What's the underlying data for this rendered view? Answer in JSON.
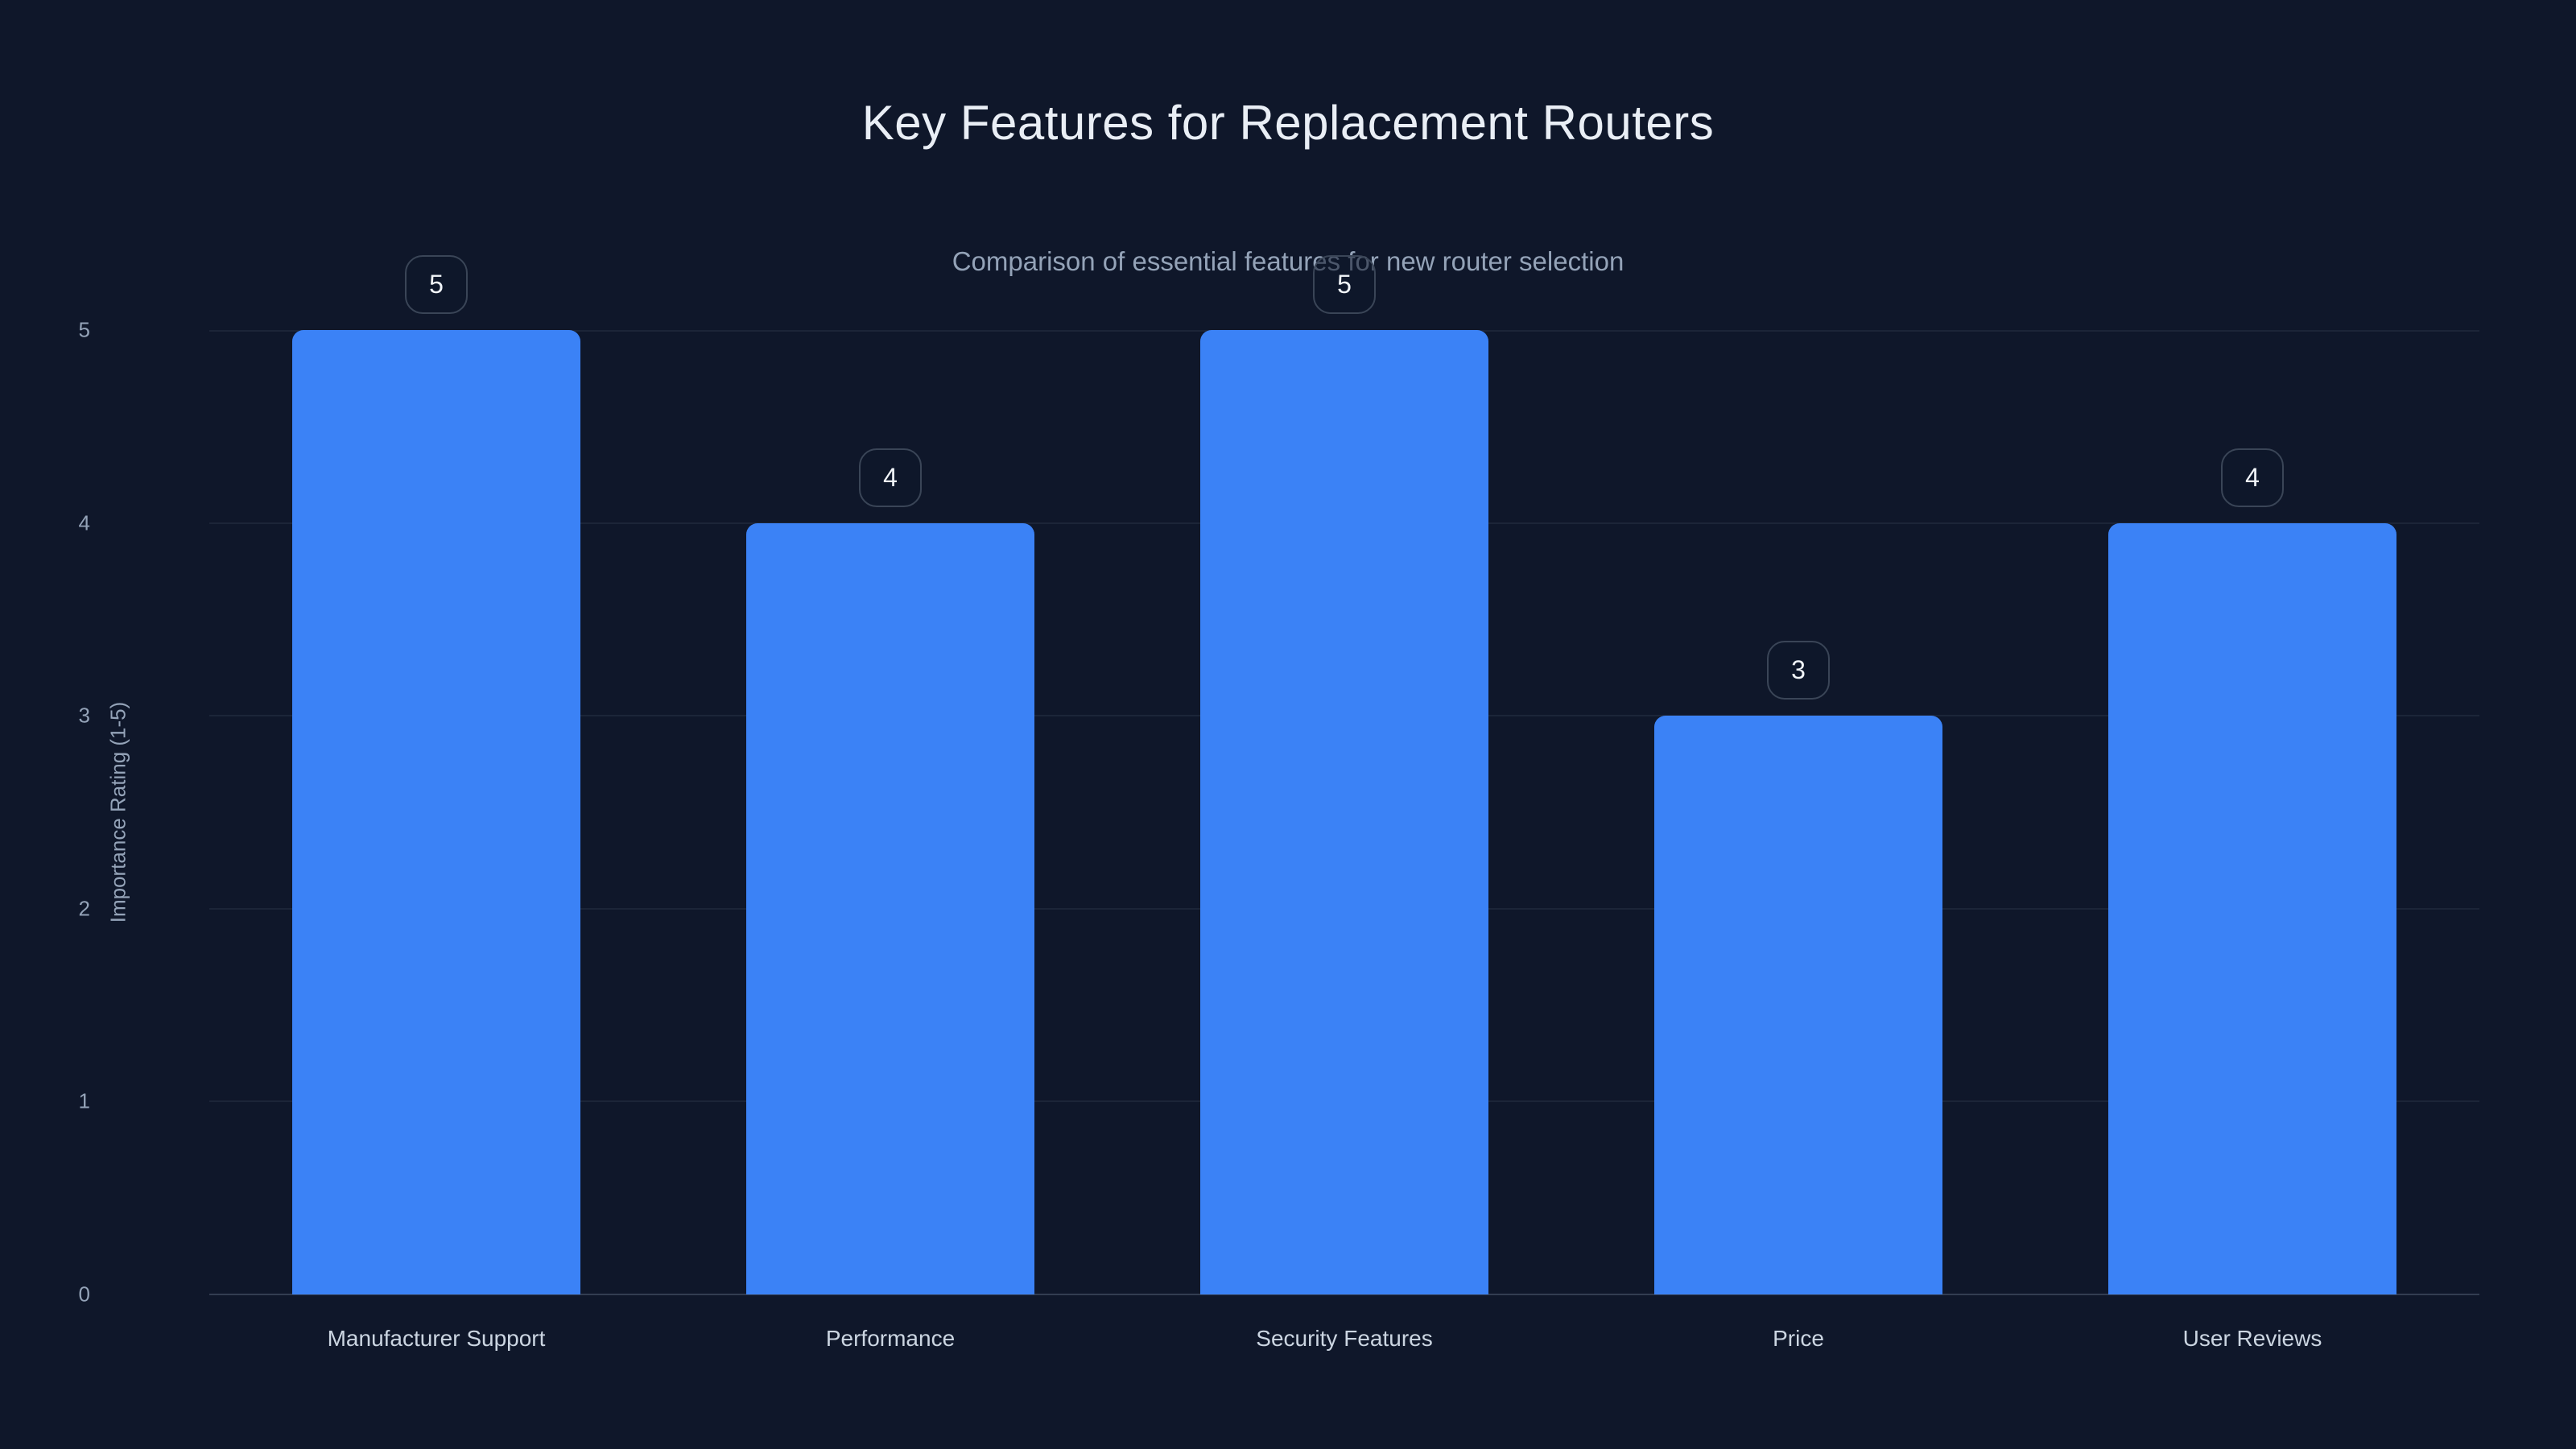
{
  "page": {
    "background_color": "#0f172a"
  },
  "chart_data": {
    "type": "bar",
    "title": "Key Features for Replacement Routers",
    "subtitle": "Comparison of essential features for new router selection",
    "ylabel": "Importance Rating (1-5)",
    "xlabel": "",
    "categories": [
      "Manufacturer Support",
      "Performance",
      "Security Features",
      "Price",
      "User Reviews"
    ],
    "values": [
      5,
      4,
      5,
      3,
      4
    ],
    "bar_value_labels": [
      "5",
      "4",
      "5",
      "3",
      "4"
    ],
    "ylim": [
      0,
      5
    ],
    "yticks": [
      0,
      1,
      2,
      3,
      4,
      5
    ],
    "grid": "horizontal-only",
    "legend_position": "none",
    "colors": {
      "background": "#0f172a",
      "bar_fill": "#3b82f6",
      "title_text": "#e9eef5",
      "subtitle_text": "#94a3b8",
      "tick_text": "#94a3b8",
      "category_text": "#cbd5e1",
      "gridline": "rgba(148,163,184,0.10)",
      "baseline": "rgba(148,163,184,0.28)",
      "badge_border": "#3a4557",
      "badge_text": "#f1f5f9"
    }
  }
}
